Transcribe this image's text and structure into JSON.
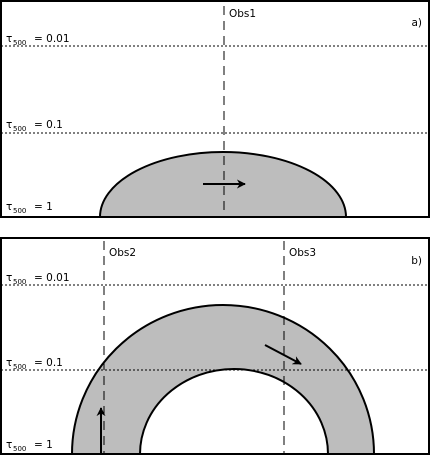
{
  "panels": [
    {
      "id": "a",
      "tag": "a)",
      "observer": "Obs1",
      "levels": [
        {
          "tau": "τ",
          "sub": "500",
          "value": "= 0.01"
        },
        {
          "tau": "τ",
          "sub": "500",
          "value": "= 0.1"
        },
        {
          "tau": "τ",
          "sub": "500",
          "value": "= 1"
        }
      ]
    },
    {
      "id": "b",
      "tag": "b)",
      "observers": [
        "Obs2",
        "Obs3"
      ],
      "levels": [
        {
          "tau": "τ",
          "sub": "500",
          "value": "= 0.01"
        },
        {
          "tau": "τ",
          "sub": "500",
          "value": "= 0.1"
        },
        {
          "tau": "τ",
          "sub": "500",
          "value": "= 1"
        }
      ]
    }
  ],
  "colors": {
    "loop_fill": "#bdbdbd",
    "stroke": "#000000",
    "background": "#ffffff"
  }
}
